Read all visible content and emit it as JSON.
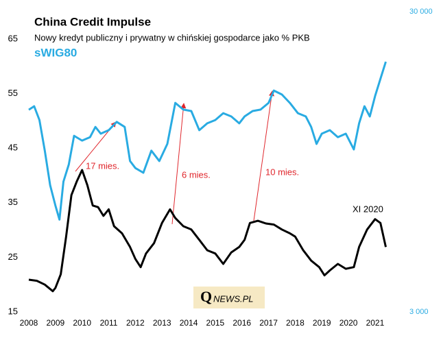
{
  "chart_data": {
    "type": "line",
    "title": "China Credit Impulse",
    "subtitle": "Nowy kredyt publiczny i prywatny w chińskiej gospodarce jako % PKB",
    "xlim": [
      2008,
      2021.8
    ],
    "xticks": [
      2008,
      2009,
      2010,
      2011,
      2012,
      2013,
      2014,
      2015,
      2016,
      2017,
      2018,
      2019,
      2020,
      2021
    ],
    "ylim": [
      15,
      65
    ],
    "yticks": [
      15,
      25,
      35,
      45,
      55,
      65
    ],
    "y2lim": [
      3000,
      30000
    ],
    "y2ticks": [
      {
        "value": 3000,
        "label": "3 000"
      },
      {
        "value": 30000,
        "label": "30 000"
      }
    ],
    "y2scale": "log",
    "grid": false,
    "series": [
      {
        "color": "#000000",
        "x": [
          2008.0,
          2008.3,
          2008.6,
          2008.9,
          2009.0,
          2009.2,
          2009.4,
          2009.6,
          2009.8,
          2010.0,
          2010.2,
          2010.4,
          2010.6,
          2010.8,
          2011.0,
          2011.2,
          2011.5,
          2011.8,
          2012.0,
          2012.2,
          2012.4,
          2012.7,
          2013.0,
          2013.3,
          2013.5,
          2013.8,
          2014.1,
          2014.4,
          2014.7,
          2015.0,
          2015.3,
          2015.6,
          2015.9,
          2016.1,
          2016.3,
          2016.6,
          2016.9,
          2017.2,
          2017.5,
          2017.8,
          2018.0,
          2018.3,
          2018.6,
          2018.9,
          2019.1,
          2019.3,
          2019.6,
          2019.9,
          2020.2,
          2020.4,
          2020.7,
          2021.0,
          2021.2,
          2021.4
        ],
        "values": [
          20.9,
          20.7,
          20.0,
          18.8,
          19.4,
          21.9,
          28.8,
          36.4,
          38.9,
          41.0,
          38.2,
          34.5,
          34.2,
          32.6,
          33.8,
          30.7,
          29.4,
          26.9,
          24.7,
          23.2,
          25.7,
          27.6,
          31.3,
          33.8,
          32.2,
          30.7,
          30.1,
          28.2,
          26.3,
          25.7,
          23.8,
          25.9,
          26.9,
          28.2,
          31.3,
          31.7,
          31.2,
          31.0,
          30.1,
          29.4,
          28.8,
          26.3,
          24.4,
          23.2,
          21.7,
          22.6,
          23.8,
          22.9,
          23.2,
          26.9,
          30.1,
          32.0,
          31.3,
          26.9
        ]
      },
      {
        "name": "sWIG80",
        "color": "#29abe2",
        "axis": "y2",
        "x": [
          2008.0,
          2008.2,
          2008.4,
          2008.6,
          2008.8,
          2009.0,
          2009.15,
          2009.3,
          2009.5,
          2009.7,
          2010.0,
          2010.3,
          2010.5,
          2010.7,
          2011.0,
          2011.3,
          2011.6,
          2011.8,
          2012.0,
          2012.3,
          2012.6,
          2012.9,
          2013.2,
          2013.5,
          2013.8,
          2014.1,
          2014.4,
          2014.7,
          2015.0,
          2015.3,
          2015.6,
          2015.9,
          2016.1,
          2016.4,
          2016.7,
          2017.0,
          2017.2,
          2017.5,
          2017.8,
          2018.1,
          2018.4,
          2018.6,
          2018.8,
          2019.0,
          2019.3,
          2019.6,
          2019.9,
          2020.2,
          2020.4,
          2020.6,
          2020.8,
          2021.0,
          2021.2,
          2021.4
        ],
        "values": [
          14140,
          14520,
          13070,
          10330,
          7930,
          6780,
          6090,
          8150,
          9290,
          11580,
          11160,
          11460,
          12390,
          11770,
          12090,
          12880,
          12390,
          9540,
          9040,
          8720,
          10330,
          9540,
          10880,
          14900,
          14150,
          14000,
          12090,
          12740,
          13070,
          13770,
          13430,
          12740,
          13430,
          14000,
          14150,
          14900,
          16380,
          15890,
          14900,
          13770,
          13430,
          12390,
          10880,
          11770,
          12090,
          11460,
          11770,
          10430,
          12740,
          14520,
          13430,
          15710,
          17920,
          20430
        ]
      }
    ],
    "annotations": [
      "17 mies.",
      "6 mies.",
      "10 mies.",
      "XI 2020"
    ],
    "logo": [
      "Q",
      "NEWS.PL"
    ]
  }
}
